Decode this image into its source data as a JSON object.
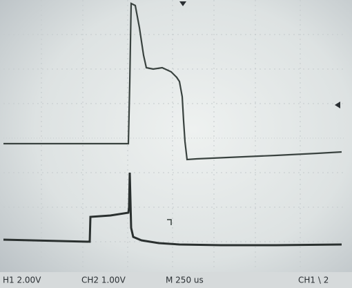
{
  "status_bar": {
    "ch1_scale": "H1 2.00V",
    "ch2_scale": "CH2 1.00V",
    "timebase": "M 250 us",
    "trigger": "CH1 \\ 2"
  }
}
